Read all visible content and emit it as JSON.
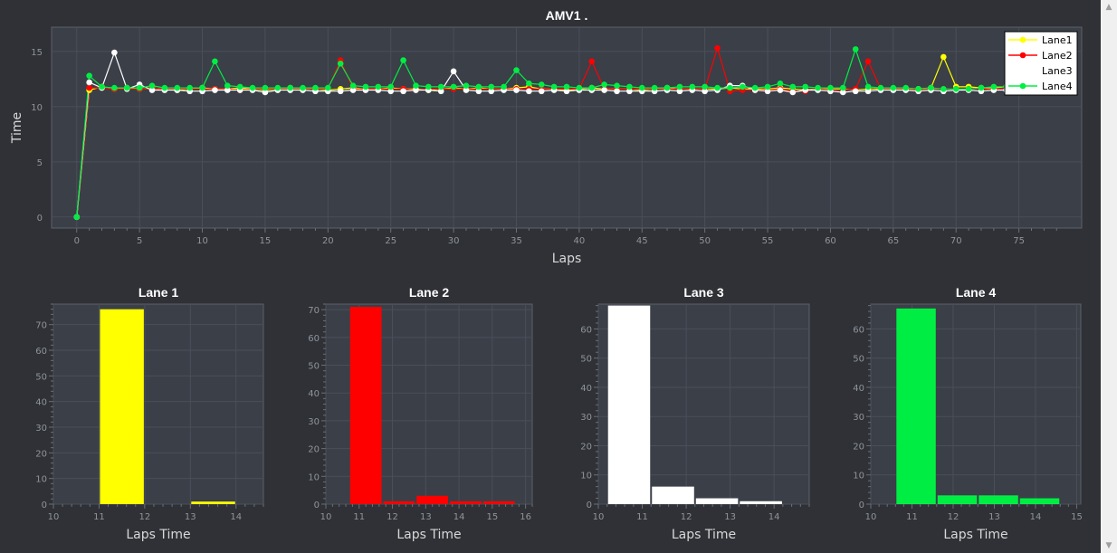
{
  "chart_data": [
    {
      "type": "line",
      "title": "AMV1 .",
      "xlabel": "Laps",
      "ylabel": "Time",
      "xlim": [
        -2,
        80
      ],
      "ylim": [
        -1,
        17.2
      ],
      "xticks": [
        0,
        5,
        10,
        15,
        20,
        25,
        30,
        35,
        40,
        45,
        50,
        55,
        60,
        65,
        70,
        75
      ],
      "yticks": [
        0,
        5,
        10,
        15
      ],
      "legend_position": "top-right",
      "series": [
        {
          "name": "Lane1",
          "color": "#ffff00",
          "x": [
            0,
            1,
            2,
            3,
            4,
            5,
            6,
            7,
            8,
            9,
            10,
            11,
            12,
            13,
            14,
            15,
            16,
            17,
            18,
            19,
            20,
            21,
            22,
            23,
            24,
            25,
            26,
            27,
            28,
            29,
            30,
            31,
            32,
            33,
            34,
            35,
            36,
            37,
            38,
            39,
            40,
            41,
            42,
            43,
            44,
            45,
            46,
            47,
            48,
            49,
            50,
            51,
            52,
            53,
            54,
            55,
            56,
            57,
            58,
            59,
            60,
            61,
            62,
            63,
            64,
            65,
            66,
            67,
            68,
            69,
            70,
            71,
            72,
            73,
            74
          ],
          "y": [
            0,
            11.5,
            11.8,
            11.6,
            11.7,
            11.6,
            11.7,
            11.6,
            11.5,
            11.6,
            11.7,
            11.6,
            11.6,
            11.7,
            11.6,
            11.5,
            11.6,
            11.7,
            11.6,
            11.6,
            11.5,
            11.6,
            11.7,
            11.6,
            11.6,
            11.7,
            11.6,
            11.6,
            11.5,
            11.6,
            11.7,
            11.6,
            11.7,
            11.6,
            11.6,
            11.7,
            11.8,
            11.6,
            11.6,
            11.5,
            11.6,
            11.7,
            11.6,
            11.6,
            11.6,
            11.5,
            11.6,
            11.7,
            11.6,
            11.6,
            11.6,
            11.6,
            11.7,
            11.6,
            11.6,
            11.6,
            11.7,
            11.6,
            11.5,
            11.6,
            11.6,
            11.6,
            11.5,
            11.6,
            11.6,
            11.6,
            11.6,
            11.6,
            11.7,
            14.5,
            11.8,
            11.8,
            11.7,
            11.7,
            11.8
          ]
        },
        {
          "name": "Lane2",
          "color": "#ff0000",
          "x": [
            0,
            1,
            2,
            3,
            4,
            5,
            6,
            7,
            8,
            9,
            10,
            11,
            12,
            13,
            14,
            15,
            16,
            17,
            18,
            19,
            20,
            21,
            22,
            23,
            24,
            25,
            26,
            27,
            28,
            29,
            30,
            31,
            32,
            33,
            34,
            35,
            36,
            37,
            38,
            39,
            40,
            41,
            42,
            43,
            44,
            45,
            46,
            47,
            48,
            49,
            50,
            51,
            52,
            53,
            54,
            55,
            56,
            57,
            58,
            59,
            60,
            61,
            62,
            63,
            64,
            65,
            66,
            67,
            68,
            69,
            70,
            71,
            72,
            73,
            74
          ],
          "y": [
            0,
            11.7,
            11.7,
            11.6,
            11.6,
            11.6,
            11.7,
            11.6,
            11.6,
            11.6,
            11.6,
            11.6,
            11.6,
            11.5,
            11.6,
            11.6,
            11.6,
            11.6,
            11.6,
            11.6,
            11.6,
            14.2,
            11.6,
            11.6,
            11.6,
            11.6,
            11.6,
            11.5,
            11.6,
            11.6,
            11.6,
            11.6,
            11.6,
            11.6,
            11.6,
            11.6,
            11.6,
            11.6,
            11.6,
            11.6,
            11.6,
            14.1,
            11.6,
            11.6,
            11.6,
            11.6,
            11.6,
            11.6,
            11.6,
            11.6,
            11.6,
            15.3,
            11.4,
            11.5,
            11.5,
            11.5,
            11.6,
            11.4,
            11.4,
            11.6,
            11.5,
            11.5,
            11.6,
            14.1,
            11.6,
            11.6,
            11.6,
            11.5,
            11.6,
            11.6,
            11.6,
            11.6,
            11.6,
            11.6,
            11.7
          ]
        },
        {
          "name": "Lane3",
          "color": "#ffffff",
          "x": [
            0,
            1,
            2,
            3,
            4,
            5,
            6,
            7,
            8,
            9,
            10,
            11,
            12,
            13,
            14,
            15,
            16,
            17,
            18,
            19,
            20,
            21,
            22,
            23,
            24,
            25,
            26,
            27,
            28,
            29,
            30,
            31,
            32,
            33,
            34,
            35,
            36,
            37,
            38,
            39,
            40,
            41,
            42,
            43,
            44,
            45,
            46,
            47,
            48,
            49,
            50,
            51,
            52,
            53,
            54,
            55,
            56,
            57,
            58,
            59,
            60,
            61,
            62,
            63,
            64,
            65,
            66,
            67,
            68,
            69,
            70,
            71,
            72,
            73,
            74
          ],
          "y": [
            0,
            12.2,
            11.7,
            14.9,
            11.6,
            12.0,
            11.5,
            11.5,
            11.5,
            11.4,
            11.4,
            11.5,
            11.5,
            11.5,
            11.5,
            11.3,
            11.5,
            11.5,
            11.5,
            11.4,
            11.4,
            11.4,
            11.5,
            11.5,
            11.5,
            11.4,
            11.4,
            11.5,
            11.5,
            11.4,
            13.2,
            11.5,
            11.4,
            11.4,
            11.5,
            11.5,
            11.4,
            11.4,
            11.5,
            11.4,
            11.5,
            11.5,
            11.5,
            11.4,
            11.4,
            11.4,
            11.4,
            11.5,
            11.4,
            11.5,
            11.4,
            11.5,
            11.9,
            11.9,
            11.5,
            11.4,
            11.5,
            11.3,
            11.5,
            11.5,
            11.4,
            11.3,
            11.4,
            11.4,
            11.5,
            11.5,
            11.5,
            11.4,
            11.5,
            11.4,
            11.5,
            11.5,
            11.4,
            11.5,
            11.5
          ]
        },
        {
          "name": "Lane4",
          "color": "#00ee44",
          "x": [
            0,
            1,
            2,
            3,
            4,
            5,
            6,
            7,
            8,
            9,
            10,
            11,
            12,
            13,
            14,
            15,
            16,
            17,
            18,
            19,
            20,
            21,
            22,
            23,
            24,
            25,
            26,
            27,
            28,
            29,
            30,
            31,
            32,
            33,
            34,
            35,
            36,
            37,
            38,
            39,
            40,
            41,
            42,
            43,
            44,
            45,
            46,
            47,
            48,
            49,
            50,
            51,
            52,
            53,
            54,
            55,
            56,
            57,
            58,
            59,
            60,
            61,
            62,
            63,
            64,
            65,
            66,
            67,
            68,
            69,
            70,
            71,
            72,
            73,
            74
          ],
          "y": [
            0,
            12.8,
            11.8,
            11.7,
            11.7,
            11.7,
            11.9,
            11.7,
            11.7,
            11.7,
            11.7,
            14.1,
            11.9,
            11.8,
            11.7,
            11.7,
            11.7,
            11.7,
            11.7,
            11.7,
            11.7,
            13.9,
            11.9,
            11.8,
            11.8,
            11.8,
            14.2,
            11.9,
            11.8,
            11.8,
            11.8,
            11.9,
            11.8,
            11.8,
            11.8,
            13.3,
            12.1,
            12.0,
            11.8,
            11.8,
            11.7,
            11.7,
            12.0,
            11.9,
            11.8,
            11.7,
            11.7,
            11.7,
            11.8,
            11.8,
            11.8,
            11.7,
            11.7,
            11.8,
            11.7,
            11.8,
            12.1,
            11.8,
            11.8,
            11.7,
            11.7,
            11.7,
            15.2,
            11.8,
            11.7,
            11.7,
            11.7,
            11.6,
            11.7,
            11.6,
            11.6,
            11.6,
            11.7,
            11.8,
            11.8
          ]
        }
      ]
    },
    {
      "type": "bar",
      "title": "Lane 1",
      "xlabel": "Laps Time",
      "ylabel": "",
      "xlim": [
        10,
        14.6
      ],
      "ylim": [
        0,
        78
      ],
      "xticks": [
        10,
        11,
        12,
        13,
        14
      ],
      "yticks": [
        0,
        10,
        20,
        30,
        40,
        50,
        60,
        70
      ],
      "color": "#ffff00",
      "bins": [
        [
          11,
          12,
          76
        ],
        [
          13,
          14,
          1
        ]
      ]
    },
    {
      "type": "bar",
      "title": "Lane 2",
      "xlabel": "Laps Time",
      "ylabel": "",
      "xlim": [
        10,
        16.2
      ],
      "ylim": [
        0,
        72
      ],
      "xticks": [
        10,
        11,
        12,
        13,
        14,
        15,
        16
      ],
      "yticks": [
        0,
        10,
        20,
        30,
        40,
        50,
        60,
        70
      ],
      "color": "#ff0000",
      "bins": [
        [
          10.7,
          11.7,
          71
        ],
        [
          11.7,
          12.7,
          1
        ],
        [
          12.7,
          13.7,
          3
        ],
        [
          13.7,
          14.7,
          1
        ],
        [
          14.7,
          15.7,
          1
        ]
      ]
    },
    {
      "type": "bar",
      "title": "Lane 3",
      "xlabel": "Laps Time",
      "ylabel": "",
      "xlim": [
        10,
        14.8
      ],
      "ylim": [
        0,
        68.5
      ],
      "xticks": [
        10,
        11,
        12,
        13,
        14
      ],
      "yticks": [
        0,
        10,
        20,
        30,
        40,
        50,
        60
      ],
      "color": "#ffffff",
      "bins": [
        [
          10.2,
          11.2,
          68
        ],
        [
          11.2,
          12.2,
          6
        ],
        [
          12.2,
          13.2,
          2
        ],
        [
          13.2,
          14.2,
          1
        ]
      ]
    },
    {
      "type": "bar",
      "title": "Lane 4",
      "xlabel": "Laps Time",
      "ylabel": "",
      "xlim": [
        10,
        15.1
      ],
      "ylim": [
        0,
        68.5
      ],
      "xticks": [
        10,
        11,
        12,
        13,
        14,
        15
      ],
      "yticks": [
        0,
        10,
        20,
        30,
        40,
        50,
        60
      ],
      "color": "#00ee44",
      "bins": [
        [
          10.6,
          11.6,
          67
        ],
        [
          11.6,
          12.6,
          3
        ],
        [
          12.6,
          13.6,
          3
        ],
        [
          13.6,
          14.6,
          2
        ]
      ]
    }
  ]
}
